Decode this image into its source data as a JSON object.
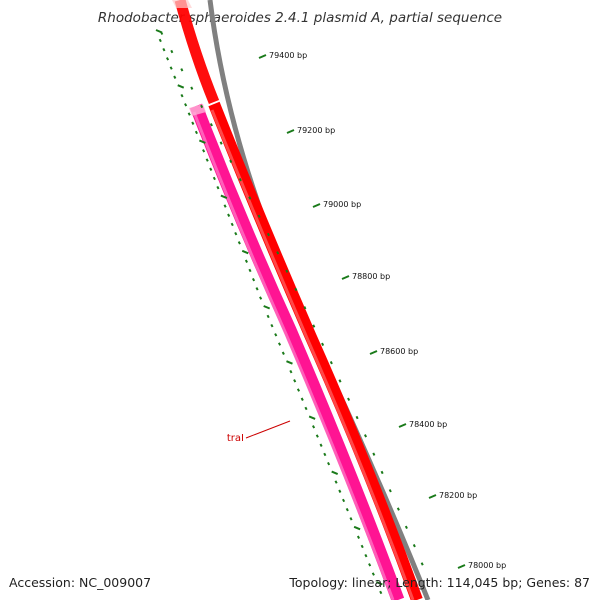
{
  "map": {
    "title": "Rhodobacter sphaeroides 2.4.1 plasmid A, partial sequence",
    "accession_text": "Accession: NC_009007",
    "info_text": "Topology: linear; Length: 114,045 bp; Genes: 87"
  },
  "colors": {
    "forward_gene": "#ff0000",
    "reverse_gene": "#ff1493",
    "backbone": "#808080",
    "ticks": "#1a7a1a",
    "label": "#cc0000"
  },
  "scale_ticks": [
    {
      "label": "79400 bp"
    },
    {
      "label": "79200 bp"
    },
    {
      "label": "79000 bp"
    },
    {
      "label": "78800 bp"
    },
    {
      "label": "78600 bp"
    },
    {
      "label": "78400 bp"
    },
    {
      "label": "78200 bp"
    },
    {
      "label": "78000 bp"
    }
  ],
  "genes": [
    {
      "name": "traI",
      "strand": "reverse"
    }
  ]
}
